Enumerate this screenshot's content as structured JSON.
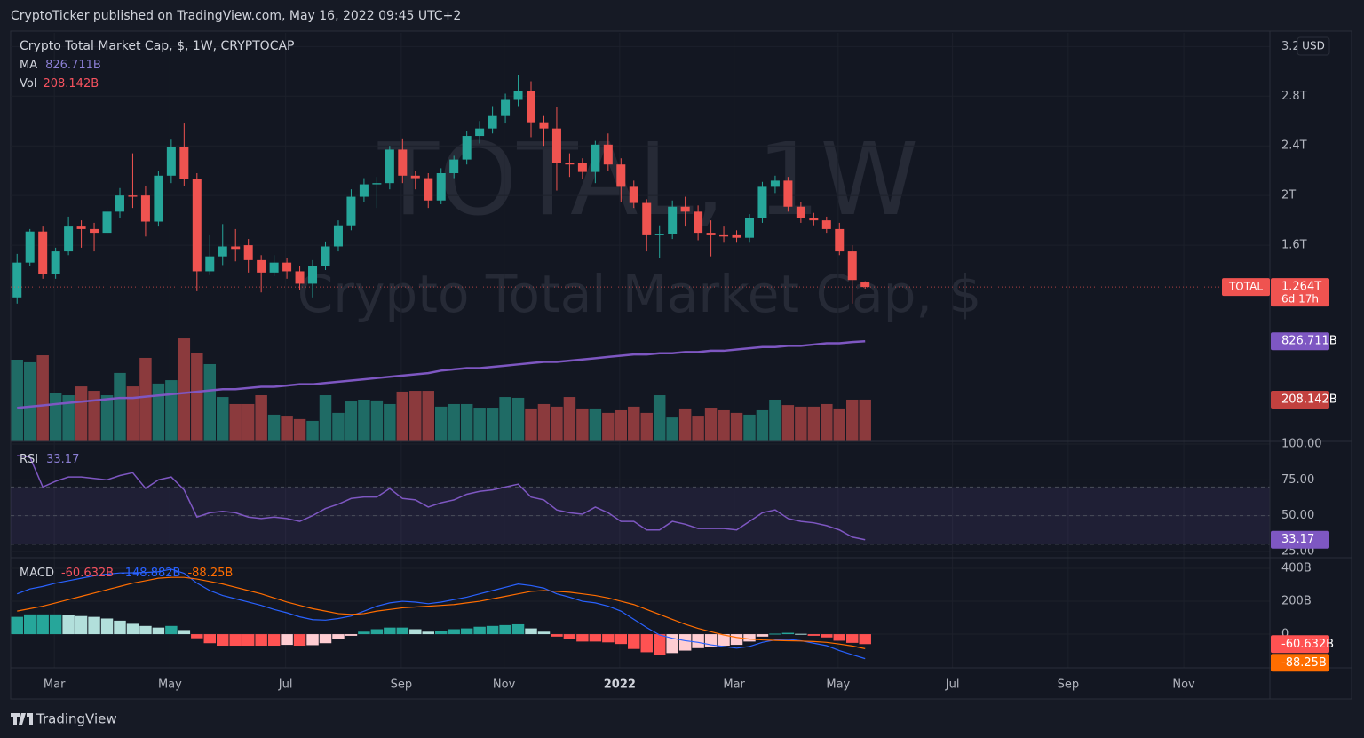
{
  "header": "CryptoTicker published on TradingView.com, May 16, 2022 09:45 UTC+2",
  "footer": "TradingView",
  "chart_data": {
    "type": "candlestick",
    "title": "Crypto Total Market Cap, $, 1W, CRYPTOCAP",
    "watermark": [
      "TOTAL, 1W",
      "Crypto Total Market Cap, $"
    ],
    "currency": "USD",
    "symbol": "TOTAL",
    "close_label": "1.264T",
    "countdown": "6d 17h",
    "up_color": "#26a69a",
    "down_color": "#ef5350",
    "grid": true,
    "open": [
      1.18,
      1.46,
      1.71,
      1.37,
      1.55,
      1.75,
      1.73,
      1.7,
      1.87,
      2.0,
      2.0,
      1.79,
      2.16,
      2.39,
      2.13,
      1.39,
      1.51,
      1.59,
      1.6,
      1.48,
      1.38,
      1.46,
      1.39,
      1.29,
      1.43,
      1.59,
      1.76,
      1.99,
      2.09,
      2.1,
      2.37,
      2.16,
      2.14,
      1.96,
      2.18,
      2.29,
      2.48,
      2.54,
      2.64,
      2.77,
      2.84,
      2.59,
      2.54,
      2.26,
      2.26,
      2.19,
      2.41,
      2.25,
      2.07,
      1.94,
      1.68,
      1.69,
      1.91,
      1.87,
      1.7,
      1.68,
      1.68,
      1.66,
      1.82,
      2.07,
      2.12,
      1.91,
      1.82,
      1.8,
      1.73,
      1.55,
      1.3
    ],
    "high": [
      1.53,
      1.73,
      1.75,
      1.58,
      1.83,
      1.8,
      1.78,
      1.9,
      2.06,
      2.34,
      2.08,
      2.2,
      2.45,
      2.58,
      2.18,
      1.68,
      1.77,
      1.73,
      1.65,
      1.52,
      1.52,
      1.5,
      1.43,
      1.48,
      1.63,
      1.8,
      2.05,
      2.14,
      2.15,
      2.4,
      2.46,
      2.2,
      2.18,
      2.22,
      2.32,
      2.52,
      2.6,
      2.72,
      2.82,
      2.97,
      2.92,
      2.64,
      2.71,
      2.34,
      2.3,
      2.44,
      2.5,
      2.3,
      2.12,
      1.97,
      1.76,
      1.96,
      1.99,
      1.92,
      1.8,
      1.75,
      1.72,
      1.85,
      2.11,
      2.16,
      2.15,
      1.95,
      1.86,
      1.83,
      1.78,
      1.6,
      1.31
    ],
    "low": [
      1.13,
      1.43,
      1.33,
      1.33,
      1.52,
      1.58,
      1.55,
      1.68,
      1.82,
      1.9,
      1.67,
      1.75,
      2.1,
      2.08,
      1.23,
      1.36,
      1.44,
      1.47,
      1.38,
      1.22,
      1.35,
      1.33,
      1.24,
      1.18,
      1.4,
      1.55,
      1.72,
      1.95,
      1.9,
      2.05,
      2.1,
      2.05,
      1.9,
      1.93,
      2.14,
      2.25,
      2.42,
      2.5,
      2.58,
      2.72,
      2.47,
      2.4,
      2.04,
      2.15,
      2.13,
      2.1,
      2.2,
      1.95,
      1.9,
      1.55,
      1.5,
      1.65,
      1.75,
      1.64,
      1.51,
      1.62,
      1.62,
      1.62,
      1.78,
      2.02,
      1.87,
      1.78,
      1.76,
      1.7,
      1.52,
      1.13,
      1.25
    ],
    "close": [
      1.46,
      1.71,
      1.37,
      1.55,
      1.75,
      1.73,
      1.7,
      1.87,
      2.0,
      1.99,
      1.79,
      2.16,
      2.39,
      2.13,
      1.39,
      1.51,
      1.59,
      1.57,
      1.48,
      1.38,
      1.46,
      1.39,
      1.29,
      1.43,
      1.59,
      1.76,
      1.99,
      2.09,
      2.1,
      2.37,
      2.16,
      2.14,
      1.96,
      2.18,
      2.29,
      2.48,
      2.54,
      2.64,
      2.77,
      2.84,
      2.59,
      2.54,
      2.26,
      2.25,
      2.19,
      2.41,
      2.25,
      2.07,
      1.94,
      1.68,
      1.69,
      1.91,
      1.87,
      1.7,
      1.68,
      1.67,
      1.66,
      1.82,
      2.07,
      2.12,
      1.91,
      1.82,
      1.8,
      1.73,
      1.55,
      1.32,
      1.264
    ],
    "xlim": [
      -0.5,
      97.5
    ],
    "xticks": [
      {
        "value": 2.9,
        "label": "Mar"
      },
      {
        "value": 11.9,
        "label": "May"
      },
      {
        "value": 20.9,
        "label": "Jul"
      },
      {
        "value": 29.9,
        "label": "Sep"
      },
      {
        "value": 37.9,
        "label": "Nov"
      },
      {
        "value": 46.9,
        "label": "2022"
      },
      {
        "value": 55.8,
        "label": "Mar"
      },
      {
        "value": 63.9,
        "label": "May"
      },
      {
        "value": 72.8,
        "label": "Jul"
      },
      {
        "value": 81.8,
        "label": "Sep"
      },
      {
        "value": 90.8,
        "label": "Nov"
      }
    ],
    "ylim": [
      0.02,
      3.31
    ],
    "yticks": [
      {
        "value": 3.2,
        "label": "3.2T"
      },
      {
        "value": 2.8,
        "label": "2.8T"
      },
      {
        "value": 2.4,
        "label": "2.4T"
      },
      {
        "value": 2,
        "label": "2T"
      },
      {
        "value": 1.6,
        "label": "1.6T"
      }
    ],
    "ma": {
      "name": "MA",
      "color": "#7e57c2",
      "value_label": "826.711B",
      "values": [
        0.29,
        0.3,
        0.31,
        0.32,
        0.33,
        0.34,
        0.35,
        0.36,
        0.37,
        0.37,
        0.38,
        0.39,
        0.4,
        0.41,
        0.42,
        0.43,
        0.44,
        0.44,
        0.45,
        0.46,
        0.46,
        0.47,
        0.48,
        0.48,
        0.49,
        0.5,
        0.51,
        0.52,
        0.53,
        0.54,
        0.55,
        0.56,
        0.57,
        0.59,
        0.6,
        0.61,
        0.61,
        0.62,
        0.63,
        0.64,
        0.65,
        0.66,
        0.66,
        0.67,
        0.68,
        0.69,
        0.7,
        0.71,
        0.72,
        0.72,
        0.73,
        0.73,
        0.74,
        0.74,
        0.75,
        0.75,
        0.76,
        0.77,
        0.78,
        0.78,
        0.79,
        0.79,
        0.8,
        0.81,
        0.81,
        0.82,
        0.826711
      ]
    },
    "volume": {
      "name": "Vol",
      "value_label": "208.142B",
      "ylim": [
        0,
        2035
      ],
      "up_color": "#1f6b65",
      "down_color": "#8b3a3d",
      "badge_color": "#c2413f",
      "values": [
        407,
        394,
        429,
        239,
        230,
        274,
        252,
        230,
        341,
        274,
        416,
        288,
        305,
        513,
        438,
        385,
        221,
        186,
        186,
        230,
        133,
        128,
        111,
        102,
        230,
        142,
        199,
        208,
        204,
        186,
        248,
        252,
        252,
        173,
        186,
        186,
        168,
        168,
        221,
        217,
        164,
        186,
        173,
        221,
        164,
        164,
        142,
        155,
        173,
        142,
        230,
        119,
        164,
        128,
        168,
        155,
        142,
        133,
        155,
        208,
        181,
        173,
        173,
        186,
        164,
        208,
        208.142
      ]
    },
    "rsi": {
      "name": "RSI",
      "color": "#7e57c2",
      "value_label": "33.17",
      "ylim": [
        20.6,
        101.9
      ],
      "yticks": [
        {
          "value": 100,
          "label": "100.00"
        },
        {
          "value": 75,
          "label": "75.00"
        },
        {
          "value": 50,
          "label": "50.00"
        },
        {
          "value": 25,
          "label": "25.00"
        }
      ],
      "band": [
        30,
        70
      ],
      "levels": [
        70,
        50,
        30
      ],
      "values": [
        92,
        91,
        70,
        74,
        77,
        77,
        76,
        75,
        78,
        80,
        69,
        75,
        77,
        68,
        49,
        52,
        53,
        52,
        49,
        48,
        49,
        48,
        46,
        50,
        55,
        58,
        62,
        63,
        63,
        69,
        62,
        61,
        56,
        59,
        61,
        65,
        67,
        68,
        70,
        72,
        63,
        61,
        54,
        52,
        51,
        56,
        52,
        46,
        46,
        40,
        40,
        46,
        44,
        41,
        41,
        41,
        40,
        46,
        52,
        54,
        48,
        46,
        45,
        43,
        40,
        35,
        33.17
      ]
    },
    "macd": {
      "name": "MACD",
      "ylim": [
        -205,
        465
      ],
      "yticks": [
        {
          "value": 400,
          "label": "400B"
        },
        {
          "value": 200,
          "label": "200B"
        },
        0
      ],
      "histogram": {
        "value_label": "-60.632B",
        "colors": [
          "#26a69a",
          "#b2dfdb",
          "#ffcdd2",
          "#ff5252"
        ],
        "values": [
          105,
          120,
          120,
          120,
          115,
          110,
          105,
          95,
          82,
          63,
          50,
          40,
          50,
          25,
          -25,
          -55,
          -70,
          -70,
          -70,
          -70,
          -70,
          -65,
          -70,
          -67,
          -55,
          -30,
          -10,
          15,
          30,
          40,
          40,
          30,
          15,
          20,
          30,
          35,
          45,
          50,
          55,
          60,
          35,
          15,
          -15,
          -30,
          -45,
          -45,
          -50,
          -60,
          -90,
          -110,
          -125,
          -115,
          -100,
          -85,
          -80,
          -70,
          -65,
          -45,
          -15,
          3,
          8,
          2,
          -10,
          -20,
          -40,
          -53,
          -60.632
        ]
      },
      "macd": {
        "value_label": "-148.882B",
        "color": "#2962ff",
        "values": [
          245,
          275,
          290,
          310,
          325,
          340,
          355,
          365,
          372,
          373,
          375,
          380,
          395,
          370,
          310,
          265,
          235,
          215,
          195,
          175,
          150,
          130,
          105,
          88,
          85,
          95,
          110,
          140,
          170,
          190,
          200,
          195,
          185,
          195,
          210,
          225,
          245,
          265,
          285,
          305,
          295,
          280,
          245,
          225,
          200,
          190,
          170,
          140,
          90,
          40,
          -5,
          -25,
          -40,
          -50,
          -65,
          -75,
          -85,
          -75,
          -50,
          -35,
          -32,
          -40,
          -55,
          -70,
          -100,
          -125,
          -148.882
        ]
      },
      "signal": {
        "value_label": "-88.25B",
        "color": "#ff6d00",
        "values": [
          140,
          155,
          170,
          190,
          210,
          230,
          250,
          270,
          290,
          310,
          325,
          340,
          345,
          345,
          335,
          320,
          305,
          285,
          265,
          245,
          220,
          195,
          175,
          155,
          140,
          125,
          120,
          125,
          140,
          150,
          160,
          165,
          170,
          175,
          180,
          190,
          200,
          215,
          230,
          245,
          260,
          265,
          260,
          255,
          245,
          235,
          220,
          200,
          180,
          150,
          120,
          90,
          60,
          35,
          15,
          -5,
          -20,
          -30,
          -35,
          -38,
          -40,
          -42,
          -45,
          -50,
          -60,
          -72,
          -88.25
        ]
      }
    }
  }
}
